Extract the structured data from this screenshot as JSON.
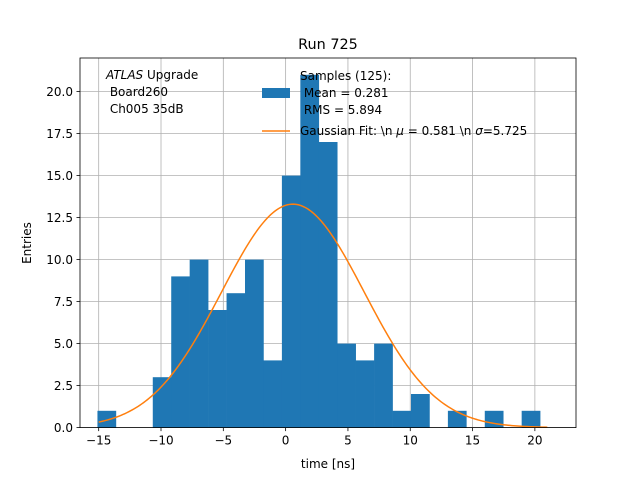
{
  "chart_data": {
    "type": "bar",
    "title": "Run 725",
    "xlabel": "time [ns]",
    "ylabel": "Entries",
    "xlim": [
      -16.5,
      23.3
    ],
    "ylim": [
      0,
      22
    ],
    "grid": true,
    "xticks": [
      -15,
      -10,
      -5,
      0,
      5,
      10,
      15,
      20
    ],
    "xtick_labels": [
      "−15",
      "−10",
      "−5",
      "0",
      "5",
      "10",
      "15",
      "20"
    ],
    "yticks": [
      0,
      2.5,
      5,
      7.5,
      10,
      12.5,
      15,
      17.5,
      20
    ],
    "ytick_labels": [
      "0.0",
      "2.5",
      "5.0",
      "7.5",
      "10.0",
      "12.5",
      "15.0",
      "17.5",
      "20.0"
    ],
    "bin_edges": [
      -15.1,
      -13.62,
      -12.14,
      -10.66,
      -9.18,
      -7.7,
      -6.22,
      -4.74,
      -3.26,
      -1.78,
      -0.3,
      1.18,
      2.66,
      4.14,
      5.62,
      7.1,
      8.58,
      10.06,
      11.54,
      13.02,
      14.5,
      15.98,
      17.46,
      18.94,
      20.42,
      21.9
    ],
    "counts": [
      1,
      0,
      0,
      3,
      9,
      10,
      7,
      8,
      10,
      4,
      15,
      21,
      17,
      5,
      4,
      5,
      1,
      2,
      0,
      1,
      0,
      1,
      0,
      1,
      0
    ],
    "fit": {
      "name": "Gaussian Fit",
      "amplitude": 13.3,
      "mu": 0.581,
      "sigma": 5.725,
      "x_range": [
        -15,
        21
      ]
    },
    "annotation": {
      "italic": "ATLAS",
      "rest": " Upgrade",
      "line2": " Board260",
      "line3": " Ch005 35dB"
    },
    "legend": {
      "position": "top-right",
      "entries": [
        {
          "label_lines": [
            "Samples (125):",
            " Mean = 0.281",
            " RMS = 5.894"
          ],
          "color": "#1f77b4",
          "type": "patch"
        },
        {
          "label_prefix": "Gaussian Fit: \\n ",
          "label_mu_symbol": "μ",
          "label_mid": " = 0.581 \\n ",
          "label_sigma_symbol": "σ",
          "label_suffix": "=5.725",
          "color": "#ff7f0e",
          "type": "line"
        }
      ]
    },
    "colors": {
      "bars": "#1f77b4",
      "fit": "#ff7f0e",
      "grid": "#b0b0b0"
    }
  }
}
